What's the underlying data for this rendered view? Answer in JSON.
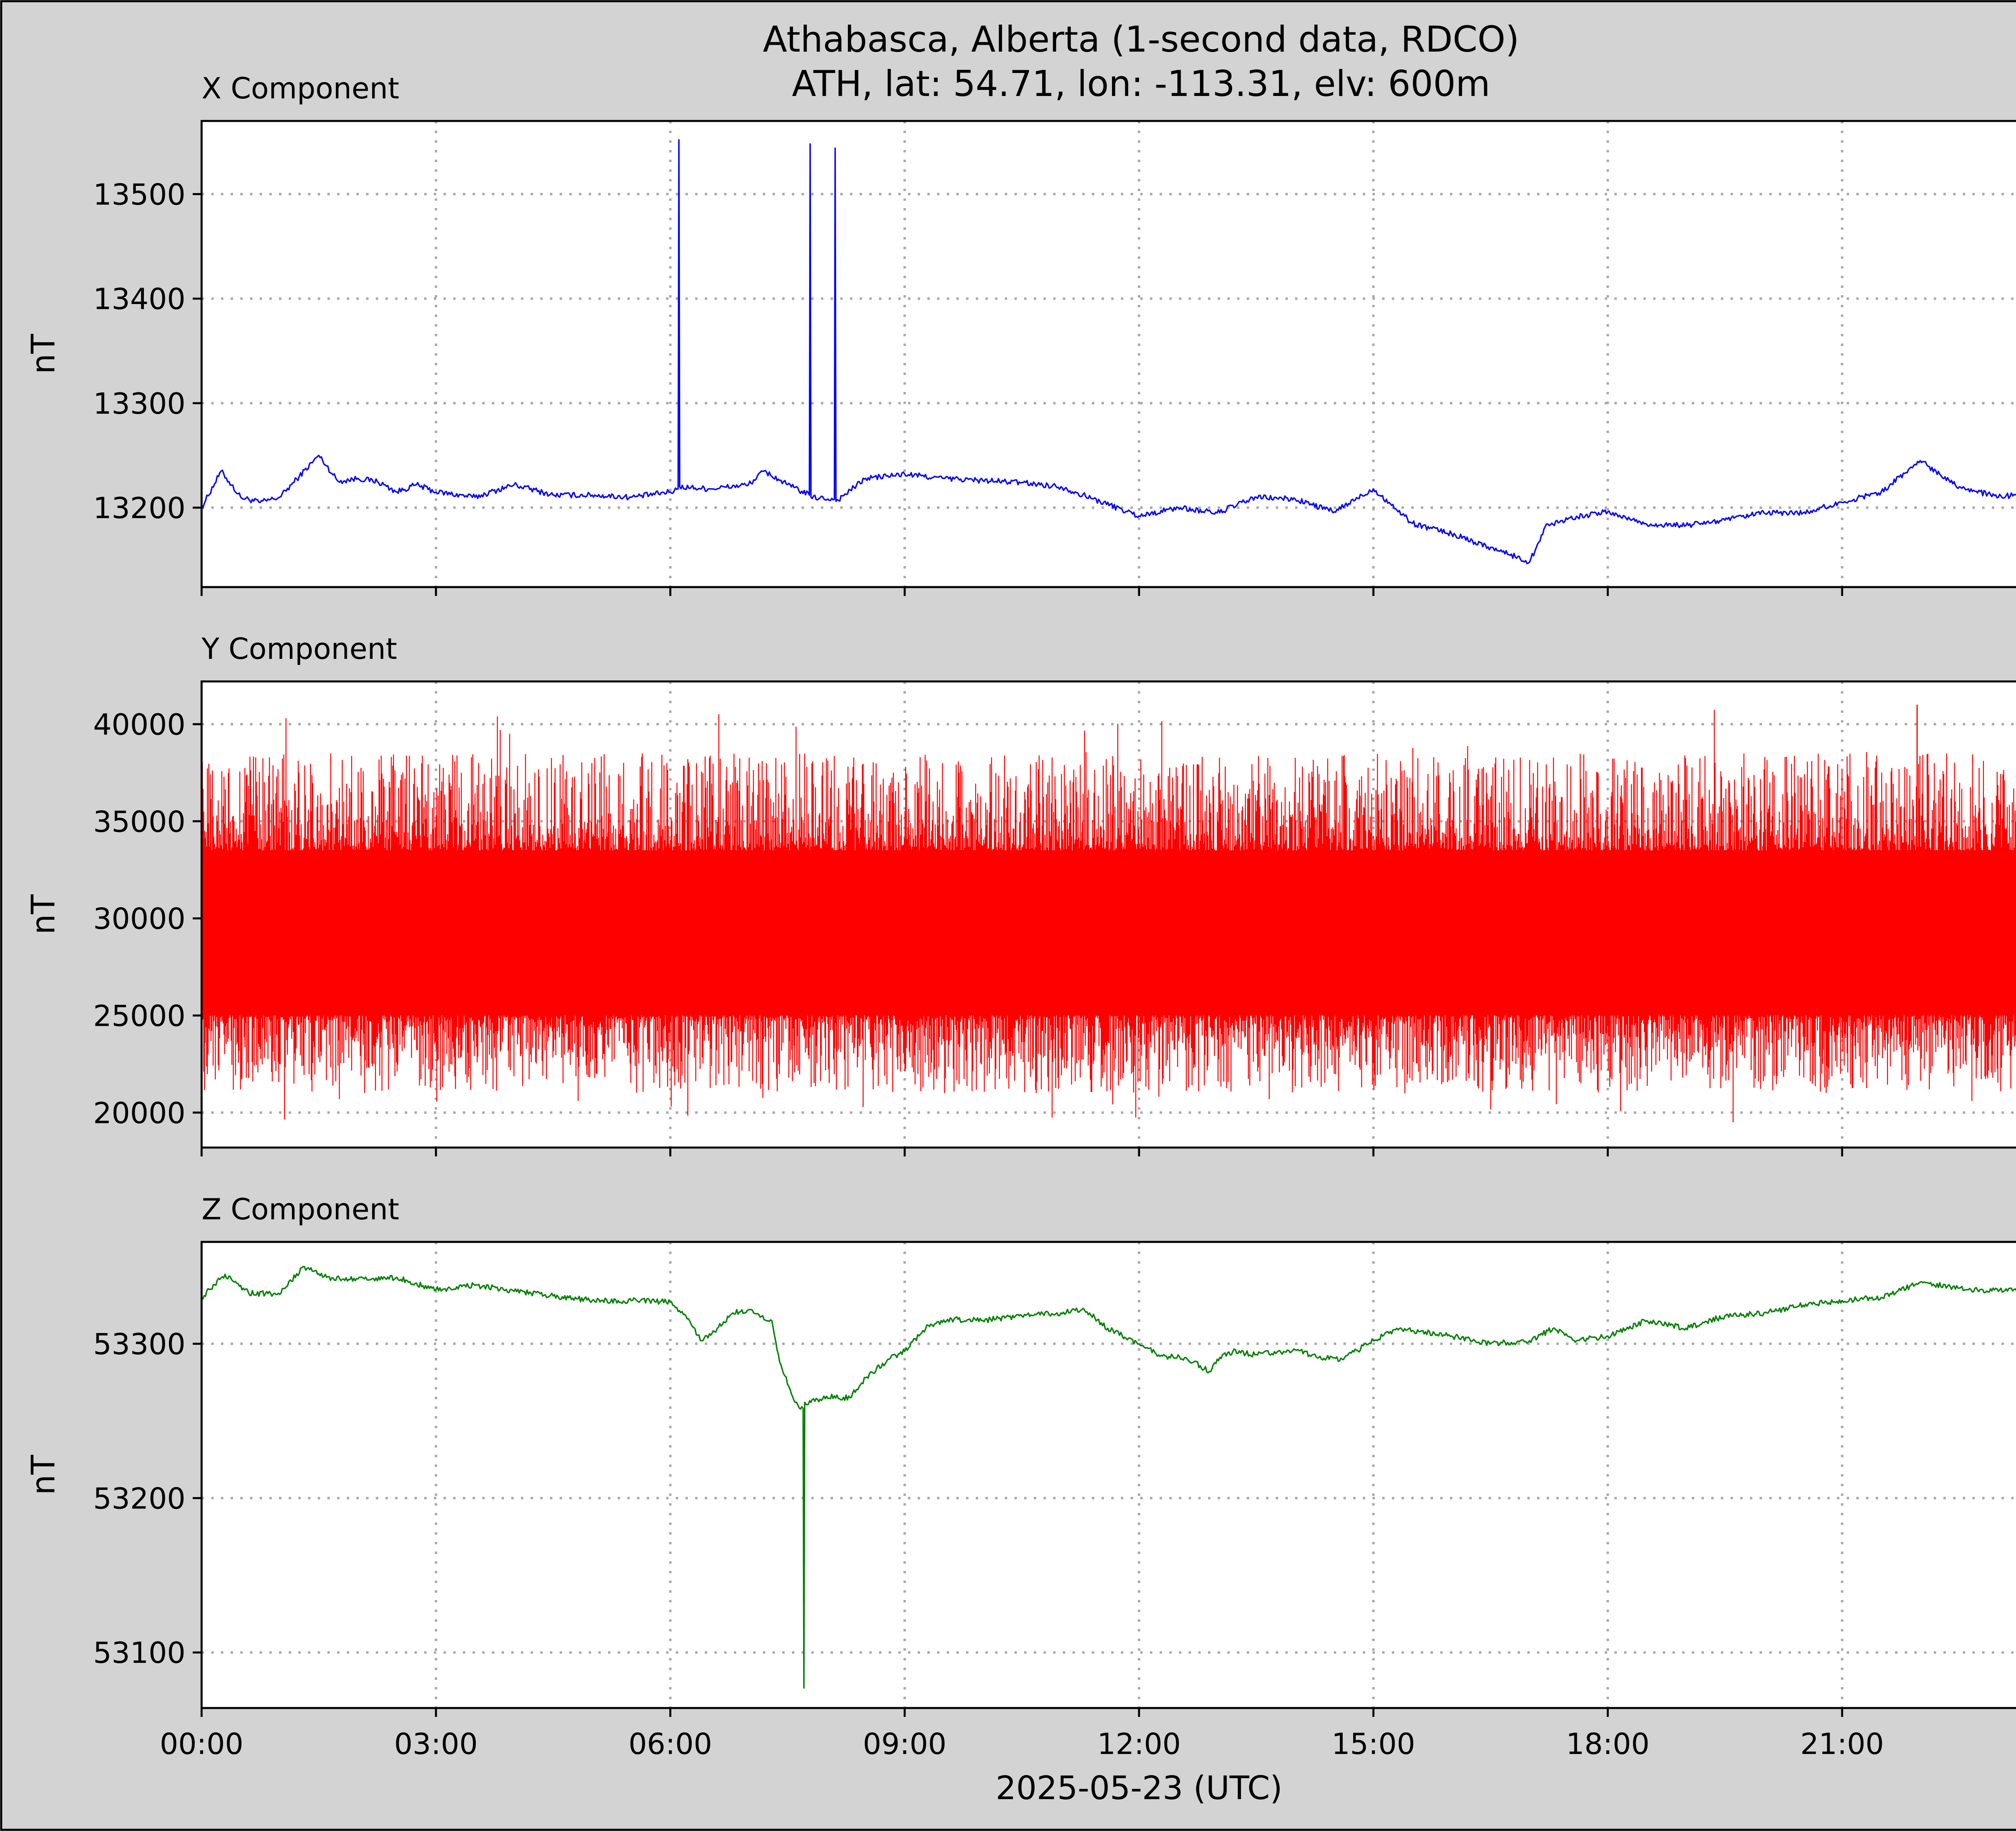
{
  "figure": {
    "title_line1": "Athabasca, Alberta (1-second data, RDCO)",
    "title_line2": "ATH, lat: 54.71, lon: -113.31, elv: 600m",
    "xlabel": "2025-05-23 (UTC)",
    "background": "#d3d3d3"
  },
  "chart_data": [
    {
      "type": "line",
      "panel_title": "X Component",
      "ylabel": "nT",
      "color": "#0000ff",
      "xlim": [
        0,
        24
      ],
      "ylim": [
        13124,
        13570
      ],
      "yticks": [
        13200,
        13300,
        13400,
        13500
      ],
      "grid": true,
      "x": [
        0,
        0.25,
        0.5,
        0.75,
        1.0,
        1.25,
        1.5,
        1.75,
        2.0,
        2.25,
        2.5,
        2.75,
        3.0,
        3.5,
        4.0,
        4.5,
        5.0,
        5.5,
        6.0,
        6.1,
        6.11,
        6.12,
        6.5,
        7.0,
        7.2,
        7.5,
        7.78,
        7.79,
        7.8,
        8.1,
        8.11,
        8.12,
        8.5,
        9.0,
        9.5,
        10.0,
        10.5,
        11.0,
        11.5,
        12.0,
        12.5,
        13.0,
        13.5,
        14.0,
        14.5,
        15.0,
        15.5,
        16.0,
        16.5,
        17.0,
        17.2,
        17.5,
        18.0,
        18.5,
        19.0,
        19.5,
        20.0,
        20.5,
        21.0,
        21.5,
        22.0,
        22.5,
        23.0,
        23.5,
        24.0
      ],
      "values": [
        13200,
        13235,
        13210,
        13205,
        13210,
        13230,
        13250,
        13225,
        13228,
        13225,
        13215,
        13222,
        13215,
        13210,
        13222,
        13212,
        13212,
        13210,
        13215,
        13218,
        13552,
        13220,
        13218,
        13222,
        13235,
        13222,
        13212,
        13548,
        13210,
        13208,
        13544,
        13206,
        13228,
        13232,
        13228,
        13226,
        13224,
        13220,
        13206,
        13192,
        13200,
        13195,
        13210,
        13208,
        13196,
        13218,
        13185,
        13175,
        13162,
        13148,
        13182,
        13190,
        13196,
        13184,
        13183,
        13188,
        13195,
        13195,
        13205,
        13215,
        13245,
        13220,
        13210,
        13215,
        13220
      ]
    },
    {
      "type": "line",
      "panel_title": "Y Component",
      "ylabel": "nT",
      "color": "#ff0000",
      "xlim": [
        0,
        24
      ],
      "ylim": [
        18200,
        42200
      ],
      "yticks": [
        20000,
        25000,
        30000,
        35000,
        40000
      ],
      "grid": true,
      "noise_band_low": [
        25000,
        33500
      ],
      "noise_extremes": [
        19500,
        41000
      ]
    },
    {
      "type": "line",
      "panel_title": "Z Component",
      "ylabel": "nT",
      "color": "#008000",
      "xlim": [
        0,
        24
      ],
      "ylim": [
        53064,
        53366
      ],
      "yticks": [
        53100,
        53200,
        53300
      ],
      "grid": true,
      "x": [
        0,
        0.3,
        0.6,
        1.0,
        1.3,
        1.6,
        2.0,
        2.5,
        3.0,
        3.5,
        4.0,
        4.5,
        5.0,
        5.5,
        6.0,
        6.2,
        6.4,
        6.6,
        6.8,
        7.0,
        7.3,
        7.4,
        7.6,
        7.7,
        7.71,
        7.72,
        7.8,
        8.0,
        8.3,
        8.5,
        8.8,
        9.0,
        9.3,
        9.6,
        10.0,
        10.5,
        11.0,
        11.3,
        11.6,
        12.0,
        12.3,
        12.6,
        12.9,
        13.0,
        13.2,
        13.5,
        14.0,
        14.3,
        14.6,
        15.0,
        15.3,
        15.6,
        16.0,
        16.5,
        17.0,
        17.3,
        17.6,
        18.0,
        18.5,
        19.0,
        19.5,
        20.0,
        20.5,
        21.0,
        21.5,
        22.0,
        22.5,
        23.0,
        23.5,
        24.0
      ],
      "values": [
        53330,
        53345,
        53333,
        53332,
        53350,
        53343,
        53342,
        53343,
        53335,
        53338,
        53334,
        53331,
        53328,
        53328,
        53327,
        53318,
        53302,
        53310,
        53320,
        53322,
        53315,
        53288,
        53262,
        53258,
        53077,
        53262,
        53262,
        53266,
        53265,
        53278,
        53290,
        53295,
        53312,
        53316,
        53315,
        53318,
        53320,
        53322,
        53310,
        53300,
        53292,
        53291,
        53282,
        53290,
        53295,
        53293,
        53296,
        53291,
        53290,
        53302,
        53310,
        53308,
        53305,
        53300,
        53302,
        53310,
        53302,
        53305,
        53315,
        53310,
        53318,
        53320,
        53325,
        53328,
        53330,
        53340,
        53336,
        53334,
        53338,
        53340
      ]
    }
  ]
}
